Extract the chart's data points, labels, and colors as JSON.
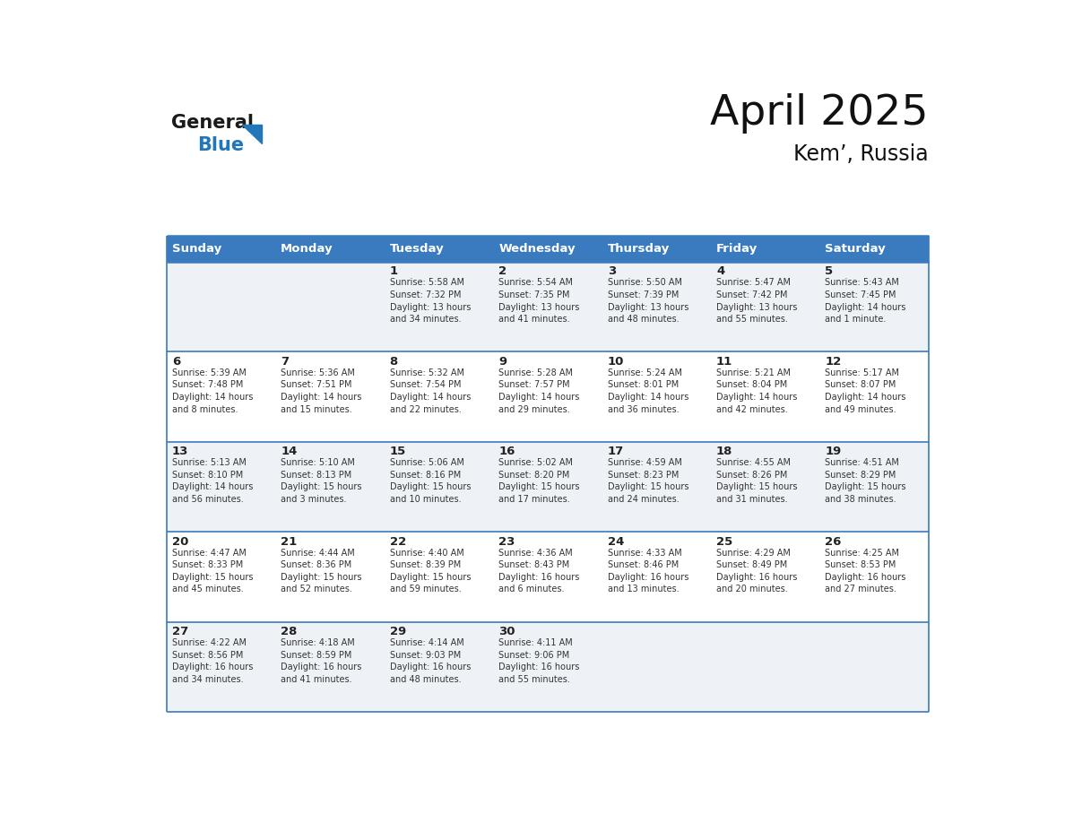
{
  "title": "April 2025",
  "subtitle": "Kem’, Russia",
  "header_bg_color": "#3a7abf",
  "header_text_color": "#ffffff",
  "days_of_week": [
    "Sunday",
    "Monday",
    "Tuesday",
    "Wednesday",
    "Thursday",
    "Friday",
    "Saturday"
  ],
  "row_bg_colors": [
    "#eef2f7",
    "#ffffff",
    "#eef2f7",
    "#ffffff",
    "#eef2f7"
  ],
  "border_color": "#3a7abf",
  "text_color": "#333333",
  "day_num_color": "#222222",
  "calendar": [
    [
      {
        "day": "",
        "info": ""
      },
      {
        "day": "",
        "info": ""
      },
      {
        "day": "1",
        "info": "Sunrise: 5:58 AM\nSunset: 7:32 PM\nDaylight: 13 hours\nand 34 minutes."
      },
      {
        "day": "2",
        "info": "Sunrise: 5:54 AM\nSunset: 7:35 PM\nDaylight: 13 hours\nand 41 minutes."
      },
      {
        "day": "3",
        "info": "Sunrise: 5:50 AM\nSunset: 7:39 PM\nDaylight: 13 hours\nand 48 minutes."
      },
      {
        "day": "4",
        "info": "Sunrise: 5:47 AM\nSunset: 7:42 PM\nDaylight: 13 hours\nand 55 minutes."
      },
      {
        "day": "5",
        "info": "Sunrise: 5:43 AM\nSunset: 7:45 PM\nDaylight: 14 hours\nand 1 minute."
      }
    ],
    [
      {
        "day": "6",
        "info": "Sunrise: 5:39 AM\nSunset: 7:48 PM\nDaylight: 14 hours\nand 8 minutes."
      },
      {
        "day": "7",
        "info": "Sunrise: 5:36 AM\nSunset: 7:51 PM\nDaylight: 14 hours\nand 15 minutes."
      },
      {
        "day": "8",
        "info": "Sunrise: 5:32 AM\nSunset: 7:54 PM\nDaylight: 14 hours\nand 22 minutes."
      },
      {
        "day": "9",
        "info": "Sunrise: 5:28 AM\nSunset: 7:57 PM\nDaylight: 14 hours\nand 29 minutes."
      },
      {
        "day": "10",
        "info": "Sunrise: 5:24 AM\nSunset: 8:01 PM\nDaylight: 14 hours\nand 36 minutes."
      },
      {
        "day": "11",
        "info": "Sunrise: 5:21 AM\nSunset: 8:04 PM\nDaylight: 14 hours\nand 42 minutes."
      },
      {
        "day": "12",
        "info": "Sunrise: 5:17 AM\nSunset: 8:07 PM\nDaylight: 14 hours\nand 49 minutes."
      }
    ],
    [
      {
        "day": "13",
        "info": "Sunrise: 5:13 AM\nSunset: 8:10 PM\nDaylight: 14 hours\nand 56 minutes."
      },
      {
        "day": "14",
        "info": "Sunrise: 5:10 AM\nSunset: 8:13 PM\nDaylight: 15 hours\nand 3 minutes."
      },
      {
        "day": "15",
        "info": "Sunrise: 5:06 AM\nSunset: 8:16 PM\nDaylight: 15 hours\nand 10 minutes."
      },
      {
        "day": "16",
        "info": "Sunrise: 5:02 AM\nSunset: 8:20 PM\nDaylight: 15 hours\nand 17 minutes."
      },
      {
        "day": "17",
        "info": "Sunrise: 4:59 AM\nSunset: 8:23 PM\nDaylight: 15 hours\nand 24 minutes."
      },
      {
        "day": "18",
        "info": "Sunrise: 4:55 AM\nSunset: 8:26 PM\nDaylight: 15 hours\nand 31 minutes."
      },
      {
        "day": "19",
        "info": "Sunrise: 4:51 AM\nSunset: 8:29 PM\nDaylight: 15 hours\nand 38 minutes."
      }
    ],
    [
      {
        "day": "20",
        "info": "Sunrise: 4:47 AM\nSunset: 8:33 PM\nDaylight: 15 hours\nand 45 minutes."
      },
      {
        "day": "21",
        "info": "Sunrise: 4:44 AM\nSunset: 8:36 PM\nDaylight: 15 hours\nand 52 minutes."
      },
      {
        "day": "22",
        "info": "Sunrise: 4:40 AM\nSunset: 8:39 PM\nDaylight: 15 hours\nand 59 minutes."
      },
      {
        "day": "23",
        "info": "Sunrise: 4:36 AM\nSunset: 8:43 PM\nDaylight: 16 hours\nand 6 minutes."
      },
      {
        "day": "24",
        "info": "Sunrise: 4:33 AM\nSunset: 8:46 PM\nDaylight: 16 hours\nand 13 minutes."
      },
      {
        "day": "25",
        "info": "Sunrise: 4:29 AM\nSunset: 8:49 PM\nDaylight: 16 hours\nand 20 minutes."
      },
      {
        "day": "26",
        "info": "Sunrise: 4:25 AM\nSunset: 8:53 PM\nDaylight: 16 hours\nand 27 minutes."
      }
    ],
    [
      {
        "day": "27",
        "info": "Sunrise: 4:22 AM\nSunset: 8:56 PM\nDaylight: 16 hours\nand 34 minutes."
      },
      {
        "day": "28",
        "info": "Sunrise: 4:18 AM\nSunset: 8:59 PM\nDaylight: 16 hours\nand 41 minutes."
      },
      {
        "day": "29",
        "info": "Sunrise: 4:14 AM\nSunset: 9:03 PM\nDaylight: 16 hours\nand 48 minutes."
      },
      {
        "day": "30",
        "info": "Sunrise: 4:11 AM\nSunset: 9:06 PM\nDaylight: 16 hours\nand 55 minutes."
      },
      {
        "day": "",
        "info": ""
      },
      {
        "day": "",
        "info": ""
      },
      {
        "day": "",
        "info": ""
      }
    ]
  ],
  "logo_text1": "General",
  "logo_text2": "Blue",
  "logo_color1": "#1a1a1a",
  "logo_color2": "#2277bb",
  "logo_triangle_color": "#2277bb",
  "fig_width": 11.88,
  "fig_height": 9.18,
  "dpi": 100
}
